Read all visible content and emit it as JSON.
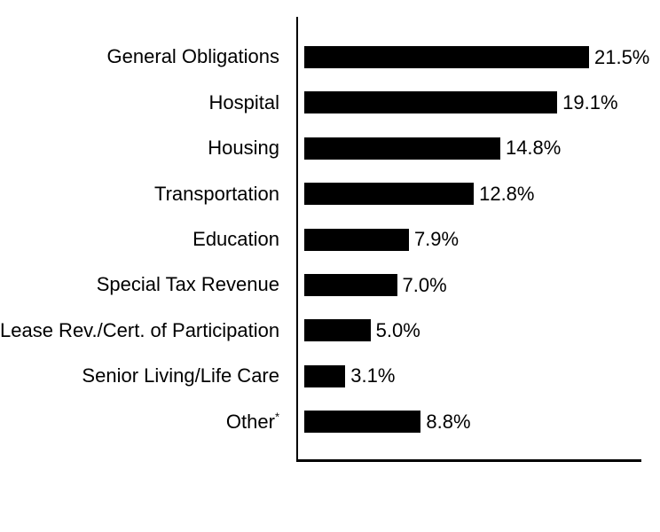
{
  "chart_data": {
    "type": "bar",
    "orientation": "horizontal",
    "title": "",
    "xlabel": "",
    "ylabel": "",
    "categories": [
      "General Obligations",
      "Hospital",
      "Housing",
      "Transportation",
      "Education",
      "Special Tax Revenue",
      "Lease Rev./Cert. of Participation",
      "Senior Living/Life Care",
      "Other*"
    ],
    "values": [
      21.5,
      19.1,
      14.8,
      12.8,
      7.9,
      7.0,
      5.0,
      3.1,
      8.8
    ],
    "value_labels": [
      "21.5%",
      "19.1%",
      "14.8%",
      "12.8%",
      "7.9%",
      "7.0%",
      "5.0%",
      "3.1%",
      "8.8%"
    ],
    "footnote_marker": "*",
    "xlim": [
      0,
      26
    ],
    "grid": false,
    "legend": false,
    "bar_color": "#000000",
    "axis_color": "#000000",
    "text_color": "#000000",
    "background_color": "#ffffff"
  }
}
